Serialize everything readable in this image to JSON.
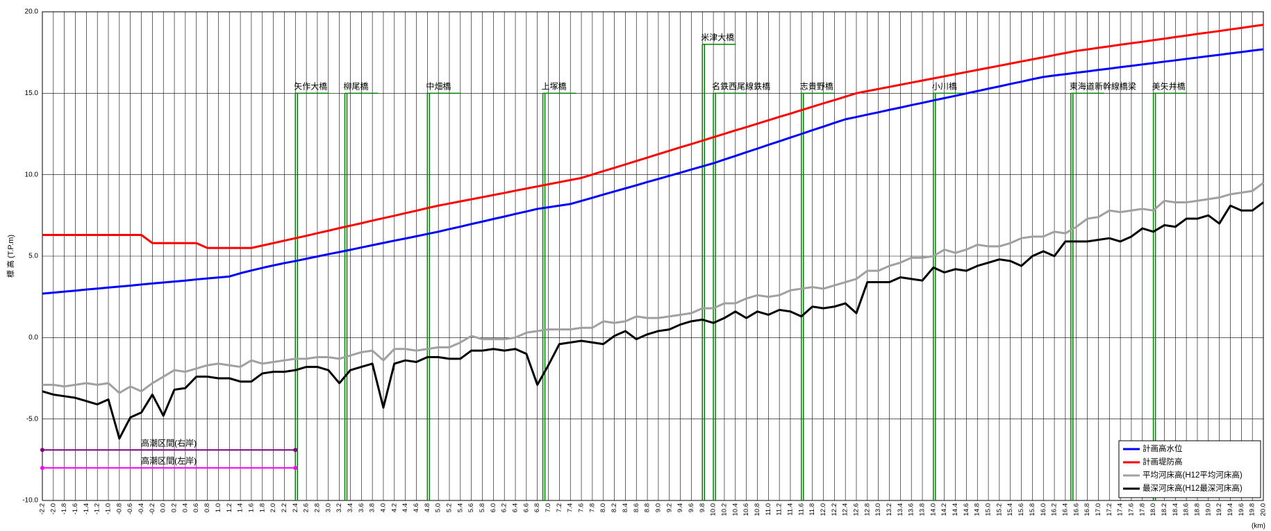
{
  "chart_data": {
    "type": "line",
    "ylabel": "標 高 (T.P.m)",
    "xlabel": "(km)",
    "xlim": [
      -2.2,
      20
    ],
    "ylim": [
      -10,
      20
    ],
    "yticks": [
      {
        "value": -10,
        "label": "-10.0"
      },
      {
        "value": -5,
        "label": "-5.0"
      },
      {
        "value": 0,
        "label": "0.0"
      },
      {
        "value": 5,
        "label": "5.0"
      },
      {
        "value": 10,
        "label": "10.0"
      },
      {
        "value": 15,
        "label": "15.0"
      },
      {
        "value": 20,
        "label": "20.0"
      }
    ],
    "xticks": [
      -2.2,
      {
        "value": -2,
        "label": "-2.0"
      },
      -1.8,
      -1.6,
      -1.4,
      -1.2,
      {
        "value": -1,
        "label": "-1.0"
      },
      -0.8,
      -0.6,
      -0.4,
      -0.2,
      {
        "value": 0,
        "label": "0.0"
      },
      0.2,
      0.4,
      0.6,
      0.8,
      {
        "value": 1,
        "label": "1.0"
      },
      1.2,
      1.4,
      1.6,
      1.8,
      {
        "value": 2,
        "label": "2.0"
      },
      2.2,
      2.4,
      2.6,
      2.8,
      {
        "value": 3,
        "label": "3.0"
      },
      3.2,
      3.4,
      3.6,
      3.8,
      {
        "value": 4,
        "label": "4.0"
      },
      4.2,
      4.4,
      4.6,
      4.8,
      {
        "value": 5,
        "label": "5.0"
      },
      5.2,
      5.4,
      5.6,
      5.8,
      {
        "value": 6,
        "label": "6.0"
      },
      6.2,
      6.4,
      6.6,
      6.8,
      {
        "value": 7,
        "label": "7.0"
      },
      7.2,
      7.4,
      7.6,
      7.8,
      {
        "value": 8,
        "label": "8.0"
      },
      8.2,
      8.4,
      8.6,
      8.8,
      {
        "value": 9,
        "label": "9.0"
      },
      9.2,
      9.4,
      9.6,
      9.8,
      {
        "value": 10,
        "label": "10.0"
      },
      10.2,
      10.4,
      10.6,
      10.8,
      {
        "value": 11,
        "label": "11.0"
      },
      11.2,
      11.4,
      11.6,
      11.8,
      {
        "value": 12,
        "label": "12.0"
      },
      12.2,
      12.4,
      12.6,
      12.8,
      {
        "value": 13,
        "label": "13.0"
      },
      13.2,
      13.4,
      13.6,
      13.8,
      {
        "value": 14,
        "label": "14.0"
      },
      14.2,
      14.4,
      14.6,
      14.8,
      {
        "value": 15,
        "label": "15.0"
      },
      15.2,
      15.4,
      15.6,
      15.8,
      {
        "value": 16,
        "label": "16.0"
      },
      16.2,
      16.4,
      16.6,
      16.8,
      {
        "value": 17,
        "label": "17.0"
      },
      17.2,
      17.4,
      17.6,
      17.8,
      {
        "value": 18,
        "label": "18.0"
      },
      18.2,
      18.4,
      18.6,
      18.8,
      {
        "value": 19,
        "label": "19.0"
      },
      19.2,
      19.4,
      19.6,
      19.8,
      {
        "value": 20,
        "label": "20.0"
      }
    ],
    "grid": true,
    "legend": "lower right",
    "x": [
      -2.2,
      -2,
      -1.8,
      -1.6,
      -1.4,
      -1.2,
      -1,
      -0.8,
      -0.6,
      -0.4,
      -0.2,
      0,
      0.2,
      0.4,
      0.6,
      0.8,
      1,
      1.2,
      1.4,
      1.6,
      1.8,
      2,
      2.2,
      2.4,
      2.6,
      2.8,
      3,
      3.2,
      3.4,
      3.6,
      3.8,
      4,
      4.2,
      4.4,
      4.6,
      4.8,
      5,
      5.2,
      5.4,
      5.6,
      5.8,
      6,
      6.2,
      6.4,
      6.6,
      6.8,
      7,
      7.2,
      7.4,
      7.6,
      7.8,
      8,
      8.2,
      8.4,
      8.6,
      8.8,
      9,
      9.2,
      9.4,
      9.6,
      9.8,
      10,
      10.2,
      10.4,
      10.6,
      10.8,
      11,
      11.2,
      11.4,
      11.6,
      11.8,
      12,
      12.2,
      12.4,
      12.6,
      12.8,
      13,
      13.2,
      13.4,
      13.6,
      13.8,
      14,
      14.2,
      14.4,
      14.6,
      14.8,
      15,
      15.2,
      15.4,
      15.6,
      15.8,
      16,
      16.2,
      16.4,
      16.6,
      16.8,
      17,
      17.2,
      17.4,
      17.6,
      17.8,
      18,
      18.2,
      18.4,
      18.6,
      18.8,
      19,
      19.2,
      19.4,
      19.6,
      19.8,
      20
    ],
    "series": [
      {
        "name": "計画高水位",
        "color": "#0000ff",
        "values": [
          2.7,
          2.76,
          2.82,
          2.88,
          2.95,
          3.01,
          3.07,
          3.13,
          3.19,
          3.26,
          3.32,
          3.38,
          3.44,
          3.5,
          3.57,
          3.63,
          3.69,
          3.75,
          3.95,
          4.12,
          4.28,
          4.43,
          4.57,
          4.7,
          4.84,
          4.98,
          5.12,
          5.25,
          5.39,
          5.53,
          5.67,
          5.81,
          5.95,
          6.08,
          6.22,
          6.36,
          6.5,
          6.66,
          6.81,
          6.97,
          7.12,
          7.28,
          7.43,
          7.59,
          7.74,
          7.9,
          8.0,
          8.1,
          8.2,
          8.39,
          8.58,
          8.78,
          8.97,
          9.16,
          9.35,
          9.55,
          9.74,
          9.93,
          10.12,
          10.32,
          10.51,
          10.7,
          10.93,
          11.15,
          11.38,
          11.6,
          11.83,
          12.05,
          12.28,
          12.5,
          12.73,
          12.95,
          13.18,
          13.4,
          13.54,
          13.69,
          13.83,
          13.98,
          14.12,
          14.27,
          14.41,
          14.56,
          14.7,
          14.84,
          14.99,
          15.13,
          15.28,
          15.42,
          15.57,
          15.71,
          15.86,
          16.0,
          16.09,
          16.17,
          16.26,
          16.34,
          16.43,
          16.51,
          16.6,
          16.68,
          16.77,
          16.85,
          16.94,
          17.02,
          17.11,
          17.19,
          17.28,
          17.36,
          17.45,
          17.53,
          17.62,
          17.7
        ]
      },
      {
        "name": "計画堤防高",
        "color": "#ff0000",
        "values": [
          6.3,
          6.3,
          6.3,
          6.3,
          6.3,
          6.3,
          6.3,
          6.3,
          6.3,
          6.3,
          5.8,
          5.8,
          5.8,
          5.8,
          5.8,
          5.5,
          5.5,
          5.5,
          5.5,
          5.5,
          5.65,
          5.8,
          5.95,
          6.1,
          6.25,
          6.41,
          6.56,
          6.72,
          6.87,
          7.02,
          7.18,
          7.33,
          7.48,
          7.64,
          7.79,
          7.95,
          8.1,
          8.23,
          8.36,
          8.49,
          8.62,
          8.75,
          8.88,
          9.02,
          9.15,
          9.28,
          9.41,
          9.54,
          9.67,
          9.8,
          10.01,
          10.22,
          10.42,
          10.63,
          10.84,
          11.05,
          11.26,
          11.47,
          11.68,
          11.88,
          12.09,
          12.3,
          12.51,
          12.72,
          12.92,
          13.13,
          13.34,
          13.55,
          13.75,
          13.96,
          14.17,
          14.38,
          14.58,
          14.79,
          15.0,
          15.13,
          15.26,
          15.39,
          15.52,
          15.65,
          15.78,
          15.91,
          16.04,
          16.17,
          16.3,
          16.43,
          16.56,
          16.69,
          16.82,
          16.95,
          17.08,
          17.21,
          17.34,
          17.47,
          17.6,
          17.69,
          17.79,
          17.88,
          17.98,
          18.07,
          18.16,
          18.26,
          18.35,
          18.45,
          18.54,
          18.64,
          18.73,
          18.82,
          18.92,
          19.01,
          19.11,
          19.2
        ]
      },
      {
        "name": "平均河床高(H12平均河床高)",
        "color": "#a0a0a0",
        "values": [
          -2.9,
          -2.9,
          -3.0,
          -2.9,
          -2.8,
          -2.9,
          -2.8,
          -3.4,
          -3.0,
          -3.3,
          -2.8,
          -2.4,
          -2.0,
          -2.1,
          -1.9,
          -1.7,
          -1.6,
          -1.7,
          -1.8,
          -1.4,
          -1.6,
          -1.5,
          -1.4,
          -1.3,
          -1.3,
          -1.2,
          -1.2,
          -1.3,
          -1.1,
          -0.9,
          -0.8,
          -1.4,
          -0.7,
          -0.7,
          -0.8,
          -0.7,
          -0.6,
          -0.6,
          -0.3,
          0.1,
          -0.1,
          -0.1,
          -0.1,
          0.0,
          0.3,
          0.4,
          0.5,
          0.5,
          0.5,
          0.6,
          0.6,
          1.0,
          0.9,
          1.0,
          1.3,
          1.2,
          1.2,
          1.3,
          1.4,
          1.5,
          1.8,
          1.8,
          2.1,
          2.1,
          2.4,
          2.6,
          2.5,
          2.6,
          2.9,
          3.0,
          3.1,
          3.0,
          3.2,
          3.4,
          3.6,
          4.1,
          4.1,
          4.4,
          4.6,
          4.9,
          4.9,
          5.0,
          5.4,
          5.2,
          5.4,
          5.7,
          5.6,
          5.6,
          5.8,
          6.1,
          6.2,
          6.2,
          6.5,
          6.4,
          6.8,
          7.3,
          7.4,
          7.8,
          7.7,
          7.8,
          7.9,
          7.8,
          8.4,
          8.3,
          8.3,
          8.4,
          8.5,
          8.6,
          8.8,
          8.9,
          9.0,
          9.5
        ]
      },
      {
        "name": "最深河床高(H12最深河床高)",
        "color": "#000000",
        "values": [
          -3.3,
          -3.5,
          -3.6,
          -3.7,
          -3.9,
          -4.1,
          -3.8,
          -6.2,
          -4.9,
          -4.6,
          -3.5,
          -4.8,
          -3.2,
          -3.1,
          -2.4,
          -2.4,
          -2.5,
          -2.5,
          -2.7,
          -2.7,
          -2.2,
          -2.1,
          -2.1,
          -2.0,
          -1.8,
          -1.8,
          -2.0,
          -2.8,
          -2.0,
          -1.8,
          -1.6,
          -4.3,
          -1.6,
          -1.4,
          -1.5,
          -1.2,
          -1.2,
          -1.3,
          -1.3,
          -0.8,
          -0.8,
          -0.7,
          -0.8,
          -0.7,
          -1.0,
          -2.9,
          -1.7,
          -0.4,
          -0.3,
          -0.2,
          -0.3,
          -0.4,
          0.1,
          0.4,
          -0.1,
          0.2,
          0.4,
          0.5,
          0.8,
          1.0,
          1.1,
          0.9,
          1.2,
          1.6,
          1.2,
          1.6,
          1.4,
          1.7,
          1.6,
          1.3,
          1.9,
          1.8,
          1.9,
          2.1,
          1.5,
          3.4,
          3.4,
          3.4,
          3.7,
          3.6,
          3.5,
          4.3,
          4.0,
          4.2,
          4.1,
          4.4,
          4.6,
          4.8,
          4.7,
          4.4,
          5.0,
          5.3,
          5.0,
          5.9,
          5.9,
          5.9,
          6.0,
          6.1,
          5.9,
          6.2,
          6.7,
          6.5,
          6.9,
          6.8,
          7.3,
          7.3,
          7.5,
          7.0,
          8.1,
          7.8,
          7.8,
          8.3
        ]
      }
    ],
    "bridges": [
      {
        "label": "矢作大橋",
        "x": 2.4,
        "y": 15,
        "color": "#008000"
      },
      {
        "label": "柳尾橋",
        "x": 3.3,
        "y": 15,
        "color": "#008000"
      },
      {
        "label": "中畑橋",
        "x": 4.8,
        "y": 15,
        "color": "#008000"
      },
      {
        "label": "上塚橋",
        "x": 6.9,
        "y": 15,
        "color": "#008000"
      },
      {
        "label": "米津大橋",
        "x": 9.8,
        "y": 18,
        "color": "#008000"
      },
      {
        "label": "名鉄西尾線鉄橋",
        "x": 10.0,
        "y": 15,
        "color": "#008000"
      },
      {
        "label": "志貴野橋",
        "x": 11.6,
        "y": 15,
        "color": "#008000"
      },
      {
        "label": "小川橋",
        "x": 14.0,
        "y": 15,
        "color": "#008000"
      },
      {
        "label": "東海道新幹線橋梁",
        "x": 16.5,
        "y": 15,
        "color": "#008000"
      },
      {
        "label": "美矢井橋",
        "x": 18.0,
        "y": 15,
        "color": "#008000"
      }
    ],
    "tidal_zones": [
      {
        "label": "高潮区間(右岸)",
        "x": [
          -2.2,
          2.4
        ],
        "y": -6.9,
        "color": "#800080"
      },
      {
        "label": "高潮区間(左岸)",
        "x": [
          -2.2,
          2.4
        ],
        "y": -8.0,
        "color": "#ff00ff"
      }
    ]
  }
}
